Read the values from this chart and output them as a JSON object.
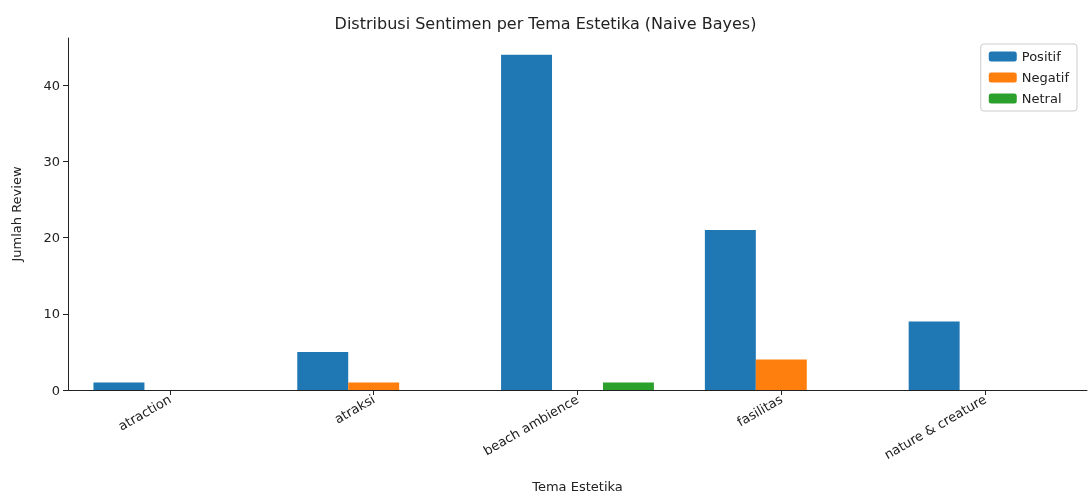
{
  "chart_data": {
    "type": "bar",
    "title": "Distribusi Sentimen per Tema Estetika (Naive Bayes)",
    "xlabel": "Tema Estetika",
    "ylabel": "Jumlah Review",
    "categories": [
      "atraction",
      "atraksi",
      "beach ambience",
      "fasilitas",
      "nature & creature"
    ],
    "series": [
      {
        "name": "Positif",
        "color": "#1f77b4",
        "values": [
          1,
          5,
          44,
          21,
          9
        ]
      },
      {
        "name": "Negatif",
        "color": "#ff7f0e",
        "values": [
          0,
          1,
          0,
          4,
          0
        ]
      },
      {
        "name": "Netral",
        "color": "#2ca02c",
        "values": [
          0,
          0,
          1,
          0,
          0
        ]
      }
    ],
    "ylim": [
      0,
      46.2
    ],
    "yticks": [
      0,
      10,
      20,
      30,
      40
    ],
    "grid": false,
    "legend": "top right"
  }
}
